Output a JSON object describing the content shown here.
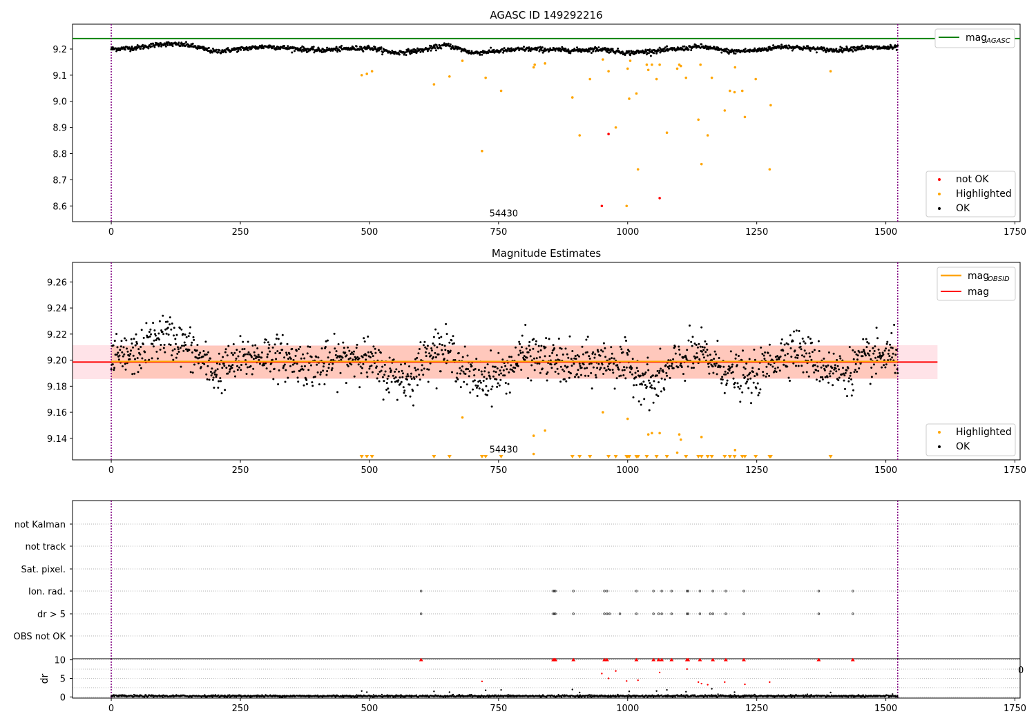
{
  "figure": {
    "background": "#ffffff"
  },
  "colors": {
    "ok": "#000000",
    "highlighted": "#ffa500",
    "not_ok": "#ff0000",
    "agasc_line": "#008000",
    "mag_line": "#ff0000",
    "mag_obsid_line": "#ffa500",
    "vline": "#800080",
    "band_mag": "#ffc0cb",
    "band_obsid": "#ffa07a",
    "grid": "#b0b0b0"
  },
  "chart_data": [
    {
      "type": "scatter",
      "title": "AGASC ID 149292216",
      "xlim": [
        -75,
        1760
      ],
      "ylim": [
        8.54,
        9.295
      ],
      "x_ticks": [
        0,
        250,
        500,
        750,
        1000,
        1250,
        1500,
        1750
      ],
      "y_ticks": [
        8.6,
        8.7,
        8.8,
        8.9,
        9.0,
        9.1,
        9.2
      ],
      "vlines_x": [
        0,
        1523
      ],
      "annotation": {
        "text": "54430",
        "x": 760,
        "y": 8.575
      },
      "hlines": [
        {
          "name": "mag_AGASC",
          "y": 9.24,
          "color": "#008000"
        }
      ],
      "legend_top": {
        "placement": "top-right",
        "entries": [
          {
            "label": "mag",
            "sub": "AGASC",
            "kind": "line",
            "color": "#008000"
          }
        ]
      },
      "legend_bottom": {
        "placement": "bottom-right",
        "entries": [
          {
            "label": "not OK",
            "kind": "dot",
            "color": "#ff0000"
          },
          {
            "label": "Highlighted",
            "kind": "dot",
            "color": "#ffa500"
          },
          {
            "label": "OK",
            "kind": "dot",
            "color": "#000000"
          }
        ]
      },
      "ok_trend": {
        "x_range": [
          0,
          1523
        ],
        "anchors": [
          [
            0,
            9.2
          ],
          [
            50,
            9.205
          ],
          [
            100,
            9.22
          ],
          [
            150,
            9.215
          ],
          [
            200,
            9.19
          ],
          [
            250,
            9.2
          ],
          [
            300,
            9.21
          ],
          [
            400,
            9.195
          ],
          [
            500,
            9.205
          ],
          [
            550,
            9.185
          ],
          [
            600,
            9.195
          ],
          [
            650,
            9.215
          ],
          [
            700,
            9.185
          ],
          [
            800,
            9.2
          ],
          [
            900,
            9.195
          ],
          [
            950,
            9.2
          ],
          [
            1000,
            9.185
          ],
          [
            1100,
            9.2
          ],
          [
            1140,
            9.21
          ],
          [
            1200,
            9.19
          ],
          [
            1250,
            9.195
          ],
          [
            1300,
            9.21
          ],
          [
            1400,
            9.195
          ],
          [
            1450,
            9.205
          ],
          [
            1523,
            9.205
          ]
        ],
        "spread": 0.01
      },
      "highlighted": [
        [
          485,
          9.1
        ],
        [
          495,
          9.105
        ],
        [
          505,
          9.115
        ],
        [
          625,
          9.065
        ],
        [
          655,
          9.095
        ],
        [
          680,
          9.155
        ],
        [
          718,
          8.81
        ],
        [
          725,
          9.09
        ],
        [
          755,
          9.04
        ],
        [
          818,
          9.13
        ],
        [
          820,
          9.14
        ],
        [
          840,
          9.145
        ],
        [
          893,
          9.015
        ],
        [
          907,
          8.87
        ],
        [
          927,
          9.085
        ],
        [
          952,
          9.16
        ],
        [
          963,
          9.115
        ],
        [
          977,
          8.9
        ],
        [
          998,
          8.6
        ],
        [
          1000,
          9.125
        ],
        [
          1003,
          9.01
        ],
        [
          1005,
          9.155
        ],
        [
          1017,
          9.03
        ],
        [
          1020,
          8.74
        ],
        [
          1037,
          9.14
        ],
        [
          1040,
          9.12
        ],
        [
          1047,
          9.14
        ],
        [
          1056,
          9.085
        ],
        [
          1062,
          9.14
        ],
        [
          1076,
          8.88
        ],
        [
          1096,
          9.125
        ],
        [
          1100,
          9.14
        ],
        [
          1103,
          9.135
        ],
        [
          1113,
          9.09
        ],
        [
          1137,
          8.93
        ],
        [
          1141,
          9.14
        ],
        [
          1143,
          8.76
        ],
        [
          1155,
          8.87
        ],
        [
          1163,
          9.09
        ],
        [
          1188,
          8.965
        ],
        [
          1198,
          9.04
        ],
        [
          1207,
          9.035
        ],
        [
          1208,
          9.13
        ],
        [
          1222,
          9.04
        ],
        [
          1227,
          8.94
        ],
        [
          1248,
          9.085
        ],
        [
          1275,
          8.74
        ],
        [
          1277,
          8.985
        ],
        [
          1393,
          9.115
        ]
      ],
      "not_ok": [
        [
          950,
          8.6
        ],
        [
          963,
          8.875
        ],
        [
          1062,
          8.63
        ]
      ]
    },
    {
      "type": "scatter",
      "title": "Magnitude Estimates",
      "xlim": [
        -75,
        1760
      ],
      "ylim": [
        9.1235,
        9.275
      ],
      "x_ticks": [
        0,
        250,
        500,
        750,
        1000,
        1250,
        1500,
        1750
      ],
      "y_ticks": [
        9.14,
        9.16,
        9.18,
        9.2,
        9.22,
        9.24,
        9.26
      ],
      "vlines_x": [
        0,
        1523
      ],
      "annotation": {
        "text": "54430",
        "x": 760,
        "y": 9.126
      },
      "bands": [
        {
          "name": "mag",
          "x_range": [
            -75,
            1600
          ],
          "y_range": [
            9.1855,
            9.2115
          ],
          "color": "#ffc0cb"
        },
        {
          "name": "mag_OBSID",
          "x_range": [
            0,
            1523
          ],
          "y_range": [
            9.186,
            9.211
          ],
          "color": "#ffa07a"
        }
      ],
      "lines": [
        {
          "name": "mag",
          "x_range": [
            -75,
            1600
          ],
          "y": 9.1985,
          "color": "#ff0000"
        },
        {
          "name": "mag_OBSID",
          "x_range": [
            0,
            1523
          ],
          "y": 9.199,
          "color": "#ffa500"
        }
      ],
      "legend_top": {
        "placement": "top-right",
        "entries": [
          {
            "label": "mag",
            "sub": "OBSID",
            "kind": "line",
            "color": "#ffa500"
          },
          {
            "label": "mag",
            "sub": "",
            "kind": "line",
            "color": "#ff0000"
          }
        ]
      },
      "legend_bottom": {
        "placement": "bottom-right",
        "entries": [
          {
            "label": "Highlighted",
            "kind": "dot",
            "color": "#ffa500"
          },
          {
            "label": "OK",
            "kind": "dot",
            "color": "#000000"
          }
        ]
      },
      "ok_trend": {
        "x_range": [
          0,
          1523
        ],
        "anchors": [
          [
            0,
            9.2
          ],
          [
            50,
            9.205
          ],
          [
            100,
            9.22
          ],
          [
            150,
            9.21
          ],
          [
            200,
            9.19
          ],
          [
            250,
            9.2
          ],
          [
            300,
            9.205
          ],
          [
            400,
            9.195
          ],
          [
            480,
            9.205
          ],
          [
            530,
            9.19
          ],
          [
            580,
            9.185
          ],
          [
            620,
            9.21
          ],
          [
            660,
            9.205
          ],
          [
            700,
            9.185
          ],
          [
            760,
            9.19
          ],
          [
            800,
            9.205
          ],
          [
            900,
            9.195
          ],
          [
            960,
            9.2
          ],
          [
            1000,
            9.195
          ],
          [
            1050,
            9.18
          ],
          [
            1100,
            9.2
          ],
          [
            1140,
            9.205
          ],
          [
            1200,
            9.19
          ],
          [
            1240,
            9.185
          ],
          [
            1280,
            9.2
          ],
          [
            1320,
            9.21
          ],
          [
            1380,
            9.195
          ],
          [
            1420,
            9.19
          ],
          [
            1460,
            9.2
          ],
          [
            1523,
            9.205
          ]
        ],
        "spread": 0.018
      },
      "highlighted": [
        [
          680,
          9.156
        ],
        [
          818,
          9.142
        ],
        [
          840,
          9.146
        ],
        [
          952,
          9.16
        ],
        [
          1000,
          9.155
        ],
        [
          1040,
          9.143
        ],
        [
          1047,
          9.144
        ],
        [
          1062,
          9.144
        ],
        [
          1100,
          9.143
        ],
        [
          1103,
          9.139
        ],
        [
          1143,
          9.141
        ],
        [
          1208,
          9.131
        ],
        [
          818,
          9.128
        ],
        [
          1096,
          9.129
        ]
      ],
      "triangles_x": [
        485,
        495,
        505,
        625,
        655,
        718,
        725,
        755,
        893,
        907,
        927,
        963,
        977,
        998,
        1000,
        1003,
        1017,
        1020,
        1037,
        1056,
        1076,
        1113,
        1137,
        1143,
        1155,
        1163,
        1188,
        1198,
        1207,
        1222,
        1227,
        1248,
        1275,
        1277,
        1393
      ]
    },
    {
      "type": "scatter",
      "title": "",
      "xlim": [
        -75,
        1760
      ],
      "ylim": [
        0,
        1
      ],
      "categories": [
        "not Kalman",
        "not track",
        "Sat. pixel.",
        "Ion. rad.",
        "dr > 5",
        "OBS not OK"
      ],
      "vlines_x": [
        0,
        1523
      ],
      "flags": {
        "Ion. rad.": [
          600,
          856,
          858,
          860,
          895,
          955,
          960,
          1017,
          1050,
          1066,
          1085,
          1115,
          1117,
          1140,
          1165,
          1190,
          1225,
          1370,
          1436
        ],
        "dr > 5": [
          600,
          856,
          858,
          860,
          895,
          955,
          960,
          965,
          985,
          1017,
          1050,
          1060,
          1066,
          1085,
          1115,
          1117,
          1140,
          1160,
          1165,
          1190,
          1225,
          1370,
          1436
        ]
      }
    },
    {
      "type": "scatter",
      "title": "",
      "xlim": [
        -75,
        1760
      ],
      "ylim": [
        -0.3,
        10.3
      ],
      "x_ticks": [
        0,
        250,
        500,
        750,
        1000,
        1250,
        1500,
        1750
      ],
      "y_ticks": [
        0,
        5,
        10
      ],
      "ylabel": "dr",
      "vlines_x": [
        0,
        1523
      ],
      "clipped_tick_text": "0",
      "red_triangles_x": [
        600,
        856,
        858,
        860,
        895,
        955,
        960,
        1017,
        1050,
        1060,
        1066,
        1085,
        1115,
        1117,
        1140,
        1165,
        1190,
        1225,
        1370,
        1436
      ],
      "scattered": [
        [
          485,
          1.6
        ],
        [
          495,
          1.3
        ],
        [
          718,
          4.2
        ],
        [
          725,
          1.8
        ],
        [
          755,
          1.9
        ],
        [
          893,
          2.0
        ],
        [
          907,
          1.2
        ],
        [
          950,
          6.3
        ],
        [
          963,
          5.0
        ],
        [
          977,
          7.0
        ],
        [
          998,
          4.3
        ],
        [
          1003,
          1.5
        ],
        [
          1020,
          4.5
        ],
        [
          1056,
          1.6
        ],
        [
          1062,
          6.6
        ],
        [
          1076,
          1.9
        ],
        [
          1113,
          1.4
        ],
        [
          1115,
          7.5
        ],
        [
          1137,
          4.0
        ],
        [
          1143,
          3.6
        ],
        [
          1155,
          3.3
        ],
        [
          1163,
          2.2
        ],
        [
          1188,
          4.0
        ],
        [
          1207,
          1.3
        ],
        [
          1227,
          3.4
        ],
        [
          1275,
          4.0
        ],
        [
          1393,
          1.2
        ],
        [
          625,
          1.5
        ],
        [
          655,
          1.3
        ]
      ],
      "baseline": {
        "x_range": [
          0,
          1523
        ],
        "mean": 0.25,
        "spread": 0.35
      }
    }
  ]
}
